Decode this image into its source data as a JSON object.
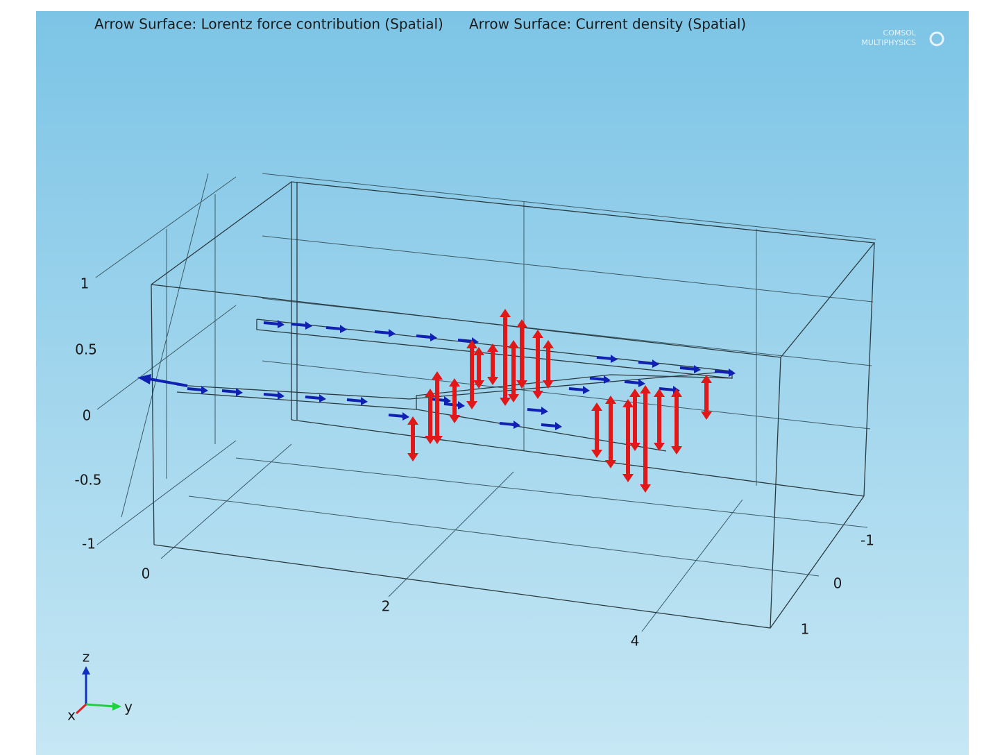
{
  "header": {
    "plots": [
      "Arrow Surface: Lorentz force contribution (Spatial)",
      "Arrow Surface: Current density (Spatial)"
    ],
    "logo": [
      "COMSOL",
      "MULTIPHYSICS"
    ]
  },
  "axes": {
    "z_ticks": [
      "1",
      "0.5",
      "0",
      "-0.5",
      "-1"
    ],
    "y_ticks": [
      "0",
      "2",
      "4"
    ],
    "x_ticks": [
      "-1",
      "0",
      "1"
    ]
  },
  "triad": {
    "z": "z",
    "y": "y",
    "x": "x"
  }
}
